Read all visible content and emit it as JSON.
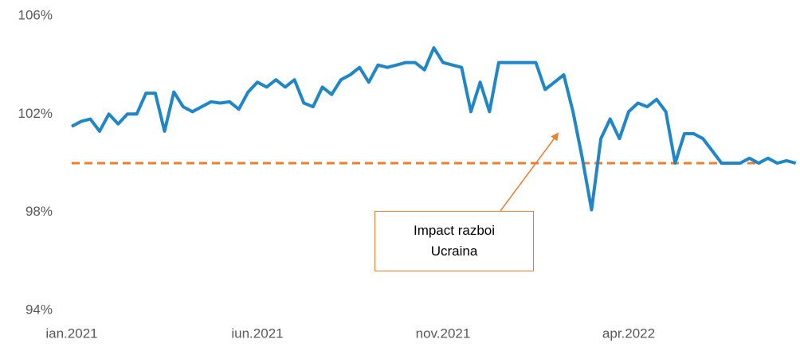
{
  "chart_data": {
    "type": "line",
    "categories": [
      "ian.2021",
      null,
      null,
      null,
      null,
      null,
      null,
      null,
      null,
      null,
      null,
      null,
      null,
      null,
      null,
      null,
      null,
      null,
      null,
      null,
      "iun.2021",
      null,
      null,
      null,
      null,
      null,
      null,
      null,
      null,
      null,
      null,
      null,
      null,
      null,
      null,
      null,
      null,
      null,
      null,
      null,
      "nov.2021",
      null,
      null,
      null,
      null,
      null,
      null,
      null,
      null,
      null,
      null,
      null,
      null,
      null,
      null,
      null,
      null,
      null,
      null,
      null,
      "apr.2022",
      null,
      null,
      null,
      null,
      null,
      null,
      null,
      null,
      null,
      null,
      null,
      null,
      null,
      null,
      null,
      null,
      null,
      null
    ],
    "series": [
      {
        "color": "#1f86c8",
        "values": [
          101.5,
          101.7,
          101.8,
          101.3,
          102.0,
          101.6,
          102.0,
          102.0,
          102.85,
          102.85,
          101.3,
          102.9,
          102.3,
          102.1,
          102.3,
          102.5,
          102.45,
          102.5,
          102.2,
          102.9,
          103.3,
          103.1,
          103.4,
          103.1,
          103.4,
          102.45,
          102.3,
          103.1,
          102.8,
          103.4,
          103.6,
          103.9,
          103.3,
          104.0,
          103.9,
          104.0,
          104.1,
          104.1,
          103.8,
          104.7,
          104.1,
          104.0,
          103.9,
          102.1,
          103.3,
          102.1,
          104.1,
          104.1,
          104.1,
          104.1,
          104.1,
          103.0,
          103.3,
          103.6,
          102.1,
          100.2,
          98.1,
          101.0,
          101.8,
          101.0,
          102.1,
          102.45,
          102.3,
          102.6,
          102.1,
          100.0,
          101.2,
          101.2,
          101.0,
          100.5,
          100.0,
          100.0,
          100.0,
          100.2,
          100.0,
          100.2,
          100.0,
          100.1,
          100.0
        ]
      }
    ],
    "reference_line": {
      "value": 100,
      "color": "#ed7d31",
      "dashed": true
    },
    "annotation": "Impact razboi Ucraina",
    "ylim": [
      94,
      106
    ],
    "yticks": [
      {
        "value": 94,
        "label": "94%"
      },
      {
        "value": 98,
        "label": "98%"
      },
      {
        "value": 102,
        "label": "102%"
      },
      {
        "value": 106,
        "label": "106%"
      }
    ],
    "grid": false
  }
}
